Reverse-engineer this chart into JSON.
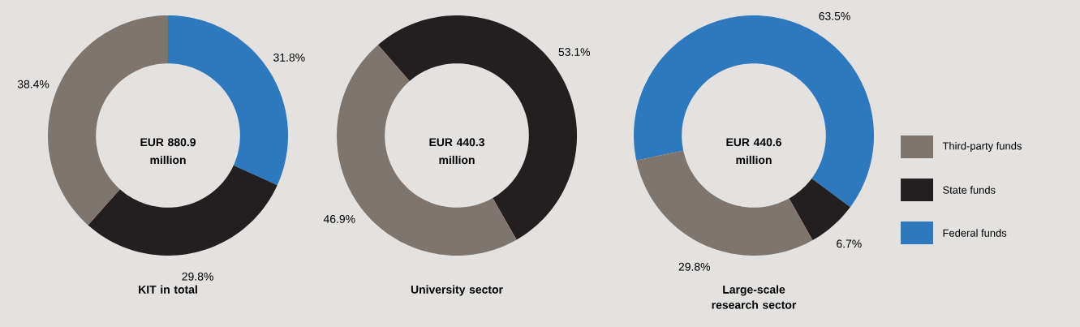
{
  "chart_data": [
    {
      "type": "donut",
      "title": "KIT in total",
      "annotations": [
        "EUR 880.9 million"
      ],
      "values": [
        38.4,
        29.8,
        31.8
      ],
      "value_labels": [
        "38.4%",
        "29.8%",
        "31.8%"
      ],
      "colors": [
        "#7f756c",
        "#231f20",
        "#2e78be"
      ]
    },
    {
      "type": "donut",
      "title": "University sector",
      "annotations": [
        "EUR 440.3 million"
      ],
      "values": [
        46.9,
        53.1
      ],
      "value_labels": [
        "46.9%",
        "53.1%"
      ],
      "colors": [
        "#7f756c",
        "#231f20"
      ]
    },
    {
      "type": "donut",
      "title": "Large-scale research sector",
      "annotations": [
        "EUR 440.6 million"
      ],
      "categories": [
        "Third-party funds",
        "State funds",
        "Federal funds"
      ],
      "values": [
        29.8,
        6.7,
        63.5
      ],
      "value_labels": [
        "29.8%",
        "6.7%",
        "63.5%"
      ],
      "colors": [
        "#7f756c",
        "#231f20",
        "#2e78be"
      ],
      "legend": "right"
    }
  ]
}
